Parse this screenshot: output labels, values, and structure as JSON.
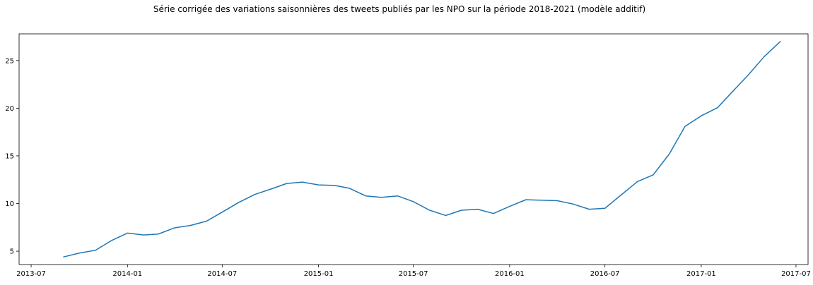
{
  "chart_data": {
    "type": "line",
    "title": "Série corrigée des variations saisonnières des tweets publiés par les NPO sur la période 2018-2021 (modèle additif)",
    "xlabel": "",
    "ylabel": "",
    "xlim": [
      "2013-06-08",
      "2017-07-24"
    ],
    "ylim": [
      3.6,
      27.8
    ],
    "grid": false,
    "line_color": "#1f77b4",
    "x_ticks": [
      "2013-07",
      "2014-01",
      "2014-07",
      "2015-01",
      "2015-07",
      "2016-01",
      "2016-07",
      "2017-01",
      "2017-07"
    ],
    "y_ticks": [
      5,
      10,
      15,
      20,
      25
    ],
    "series": [
      {
        "x": [
          "2013-09",
          "2013-10",
          "2013-11",
          "2013-12",
          "2014-01",
          "2014-02",
          "2014-03",
          "2014-04",
          "2014-05",
          "2014-06",
          "2014-07",
          "2014-08",
          "2014-09",
          "2014-10",
          "2014-11",
          "2014-12",
          "2015-01",
          "2015-02",
          "2015-03",
          "2015-04",
          "2015-05",
          "2015-06",
          "2015-07",
          "2015-08",
          "2015-09",
          "2015-10",
          "2015-11",
          "2015-12",
          "2016-01",
          "2016-02",
          "2016-03",
          "2016-04",
          "2016-05",
          "2016-06",
          "2016-07",
          "2016-08",
          "2016-09",
          "2016-10",
          "2016-11",
          "2016-12",
          "2017-01",
          "2017-02",
          "2017-03",
          "2017-04",
          "2017-05",
          "2017-06"
        ],
        "values": [
          4.4,
          4.8,
          5.1,
          6.1,
          6.9,
          6.7,
          6.8,
          7.45,
          7.7,
          8.15,
          9.1,
          10.1,
          10.95,
          11.5,
          12.1,
          12.25,
          11.95,
          11.9,
          11.6,
          10.8,
          10.65,
          10.8,
          10.2,
          9.3,
          8.75,
          9.3,
          9.4,
          8.95,
          9.7,
          10.4,
          10.35,
          10.3,
          9.95,
          9.4,
          9.5,
          10.9,
          12.3,
          13.0,
          15.2,
          18.1,
          19.2,
          20.05,
          21.7,
          23.5,
          25.4,
          27.0
        ]
      }
    ]
  }
}
